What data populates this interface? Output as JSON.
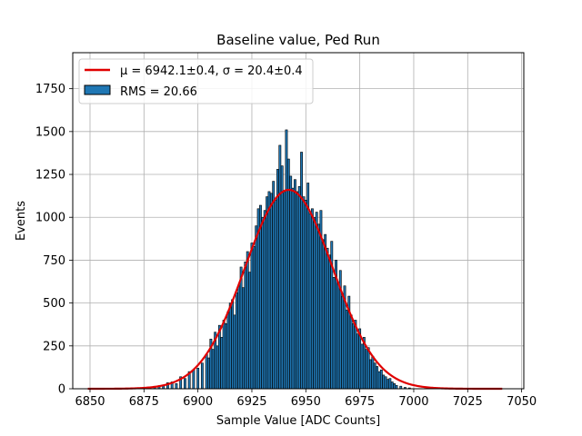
{
  "chart_data": {
    "type": "bar",
    "title": "Baseline value, Ped Run",
    "xlabel": "Sample Value [ADC Counts]",
    "ylabel": "Events",
    "xlim": [
      6842,
      7051
    ],
    "ylim": [
      0,
      1960
    ],
    "x_ticks": [
      6850,
      6875,
      6900,
      6925,
      6950,
      6975,
      7000,
      7025,
      7050
    ],
    "y_ticks": [
      0,
      250,
      500,
      750,
      1000,
      1250,
      1500,
      1750
    ],
    "x_tick_labels": [
      "6850",
      "6875",
      "6900",
      "6925",
      "6950",
      "6975",
      "7000",
      "7025",
      "7050"
    ],
    "y_tick_labels": [
      "0",
      "250",
      "500",
      "750",
      "1000",
      "1250",
      "1500",
      "1750"
    ],
    "grid": true,
    "legend_position": "top-left",
    "legend": {
      "fit_label": "μ = 6942.1±0.4, σ = 20.4±0.4",
      "hist_label": "RMS = 20.66"
    },
    "histogram": {
      "name": "RMS = 20.66",
      "color": "#1f77b4",
      "edge_color": "#000000",
      "bins": [
        {
          "x": 6880,
          "y": 10
        },
        {
          "x": 6882,
          "y": 15
        },
        {
          "x": 6884,
          "y": 20
        },
        {
          "x": 6886,
          "y": 35
        },
        {
          "x": 6888,
          "y": 40
        },
        {
          "x": 6890,
          "y": 30
        },
        {
          "x": 6892,
          "y": 70
        },
        {
          "x": 6894,
          "y": 60
        },
        {
          "x": 6896,
          "y": 100
        },
        {
          "x": 6898,
          "y": 110
        },
        {
          "x": 6900,
          "y": 120
        },
        {
          "x": 6902,
          "y": 150
        },
        {
          "x": 6904,
          "y": 200
        },
        {
          "x": 6905,
          "y": 180
        },
        {
          "x": 6906,
          "y": 290
        },
        {
          "x": 6907,
          "y": 230
        },
        {
          "x": 6908,
          "y": 330
        },
        {
          "x": 6909,
          "y": 250
        },
        {
          "x": 6910,
          "y": 370
        },
        {
          "x": 6911,
          "y": 300
        },
        {
          "x": 6912,
          "y": 400
        },
        {
          "x": 6913,
          "y": 380
        },
        {
          "x": 6914,
          "y": 450
        },
        {
          "x": 6915,
          "y": 500
        },
        {
          "x": 6916,
          "y": 520
        },
        {
          "x": 6917,
          "y": 430
        },
        {
          "x": 6918,
          "y": 560
        },
        {
          "x": 6919,
          "y": 600
        },
        {
          "x": 6920,
          "y": 710
        },
        {
          "x": 6921,
          "y": 590
        },
        {
          "x": 6922,
          "y": 740
        },
        {
          "x": 6923,
          "y": 800
        },
        {
          "x": 6924,
          "y": 680
        },
        {
          "x": 6925,
          "y": 850
        },
        {
          "x": 6926,
          "y": 830
        },
        {
          "x": 6927,
          "y": 950
        },
        {
          "x": 6928,
          "y": 1050
        },
        {
          "x": 6929,
          "y": 1070
        },
        {
          "x": 6930,
          "y": 1000
        },
        {
          "x": 6931,
          "y": 1040
        },
        {
          "x": 6932,
          "y": 1120
        },
        {
          "x": 6933,
          "y": 1150
        },
        {
          "x": 6934,
          "y": 1140
        },
        {
          "x": 6935,
          "y": 1210
        },
        {
          "x": 6936,
          "y": 1100
        },
        {
          "x": 6937,
          "y": 1280
        },
        {
          "x": 6938,
          "y": 1420
        },
        {
          "x": 6939,
          "y": 1300
        },
        {
          "x": 6940,
          "y": 1150
        },
        {
          "x": 6941,
          "y": 1510
        },
        {
          "x": 6942,
          "y": 1340
        },
        {
          "x": 6943,
          "y": 1240
        },
        {
          "x": 6944,
          "y": 1170
        },
        {
          "x": 6945,
          "y": 1220
        },
        {
          "x": 6946,
          "y": 1150
        },
        {
          "x": 6947,
          "y": 1180
        },
        {
          "x": 6948,
          "y": 1380
        },
        {
          "x": 6949,
          "y": 1120
        },
        {
          "x": 6950,
          "y": 1100
        },
        {
          "x": 6951,
          "y": 1200
        },
        {
          "x": 6952,
          "y": 1020
        },
        {
          "x": 6953,
          "y": 1050
        },
        {
          "x": 6954,
          "y": 1000
        },
        {
          "x": 6955,
          "y": 1030
        },
        {
          "x": 6956,
          "y": 960
        },
        {
          "x": 6957,
          "y": 1040
        },
        {
          "x": 6958,
          "y": 870
        },
        {
          "x": 6959,
          "y": 900
        },
        {
          "x": 6960,
          "y": 820
        },
        {
          "x": 6961,
          "y": 780
        },
        {
          "x": 6962,
          "y": 860
        },
        {
          "x": 6963,
          "y": 650
        },
        {
          "x": 6964,
          "y": 750
        },
        {
          "x": 6965,
          "y": 620
        },
        {
          "x": 6966,
          "y": 690
        },
        {
          "x": 6967,
          "y": 540
        },
        {
          "x": 6968,
          "y": 600
        },
        {
          "x": 6969,
          "y": 460
        },
        {
          "x": 6970,
          "y": 540
        },
        {
          "x": 6971,
          "y": 430
        },
        {
          "x": 6972,
          "y": 380
        },
        {
          "x": 6973,
          "y": 400
        },
        {
          "x": 6974,
          "y": 320
        },
        {
          "x": 6975,
          "y": 350
        },
        {
          "x": 6976,
          "y": 260
        },
        {
          "x": 6977,
          "y": 300
        },
        {
          "x": 6978,
          "y": 230
        },
        {
          "x": 6979,
          "y": 240
        },
        {
          "x": 6980,
          "y": 170
        },
        {
          "x": 6981,
          "y": 190
        },
        {
          "x": 6982,
          "y": 150
        },
        {
          "x": 6983,
          "y": 130
        },
        {
          "x": 6984,
          "y": 100
        },
        {
          "x": 6985,
          "y": 110
        },
        {
          "x": 6986,
          "y": 80
        },
        {
          "x": 6987,
          "y": 70
        },
        {
          "x": 6988,
          "y": 55
        },
        {
          "x": 6989,
          "y": 60
        },
        {
          "x": 6990,
          "y": 40
        },
        {
          "x": 6991,
          "y": 30
        },
        {
          "x": 6992,
          "y": 20
        },
        {
          "x": 6994,
          "y": 15
        },
        {
          "x": 6996,
          "y": 8
        },
        {
          "x": 6998,
          "y": 5
        }
      ]
    },
    "fit": {
      "name": "μ = 6942.1±0.4, σ = 20.4±0.4",
      "color": "#e00000",
      "mu": 6942.1,
      "sigma": 20.4,
      "amplitude": 1160,
      "x_range": [
        6849,
        7041
      ]
    }
  }
}
